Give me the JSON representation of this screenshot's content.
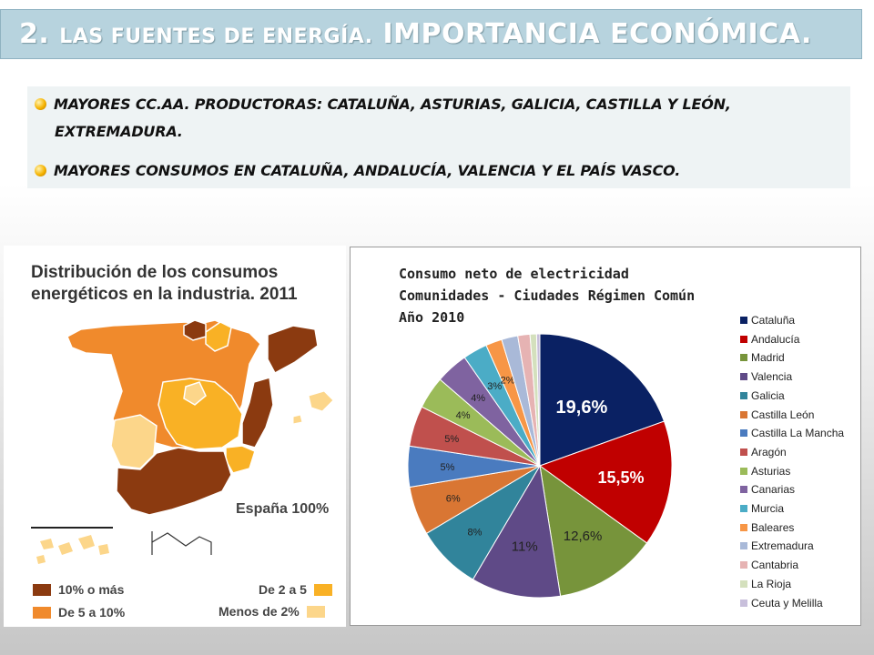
{
  "header": {
    "title_num": "2.",
    "title_small": "LAS FUENTES DE ENERGÍA.",
    "title_big": "IMPORTANCIA ECONÓMICA."
  },
  "bullets": {
    "b1_line1": "MAYORES CC.AA. PRODUCTORAS: CATALUÑA, ASTURIAS, GALICIA, CASTILLA Y LEÓN,",
    "b1_line2": "EXTREMADURA.",
    "b2": "MAYORES CONSUMOS EN CATALUÑA, ANDALUCÍA, VALENCIA Y EL PAÍS VASCO."
  },
  "map": {
    "title_line1": "Distribución de los consumos",
    "title_line2": "energéticos en la industria. 2011",
    "total_label": "España 100%",
    "legend": [
      {
        "label": "10% o más",
        "color": "#8b3a10"
      },
      {
        "label": "De 5 a 10%",
        "color": "#f08a2c"
      },
      {
        "label": "De 2 a 5",
        "color": "#f9b125"
      },
      {
        "label": "Menos de 2%",
        "color": "#fcd68a"
      }
    ]
  },
  "chart_data": {
    "type": "pie",
    "title_lines": [
      "Consumo neto de electricidad",
      "Comunidades - Ciudades Régimen Común",
      "Año 2010"
    ],
    "categories": [
      "Cataluña",
      "Andalucía",
      "Madrid",
      "Valencia",
      "Galicia",
      "Castilla León",
      "Castilla La Mancha",
      "Aragón",
      "Asturias",
      "Canarias",
      "Murcia",
      "Baleares",
      "Extremadura",
      "Cantabria",
      "La Rioja",
      "Ceuta y Melilla"
    ],
    "values": [
      19.6,
      15.5,
      12.6,
      11,
      8,
      6,
      5,
      5,
      4,
      4,
      3,
      2,
      2,
      1.5,
      0.8,
      0.4
    ],
    "data_labels": [
      "19,6%",
      "15,5%",
      "12,6%",
      "11%",
      "8%",
      "6%",
      "5%",
      "5%",
      "4%",
      "4%",
      "3%",
      "2%",
      "",
      "",
      "",
      ""
    ],
    "colors": [
      "#0a2163",
      "#c00000",
      "#77943b",
      "#5f4a87",
      "#31849b",
      "#d97633",
      "#4a7bbf",
      "#c0504d",
      "#9bbb59",
      "#7f63a0",
      "#4bacc6",
      "#f79646",
      "#a9b9d8",
      "#e6b3b3",
      "#d4e0bd",
      "#c8bfdb"
    ],
    "legend_position": "right"
  }
}
